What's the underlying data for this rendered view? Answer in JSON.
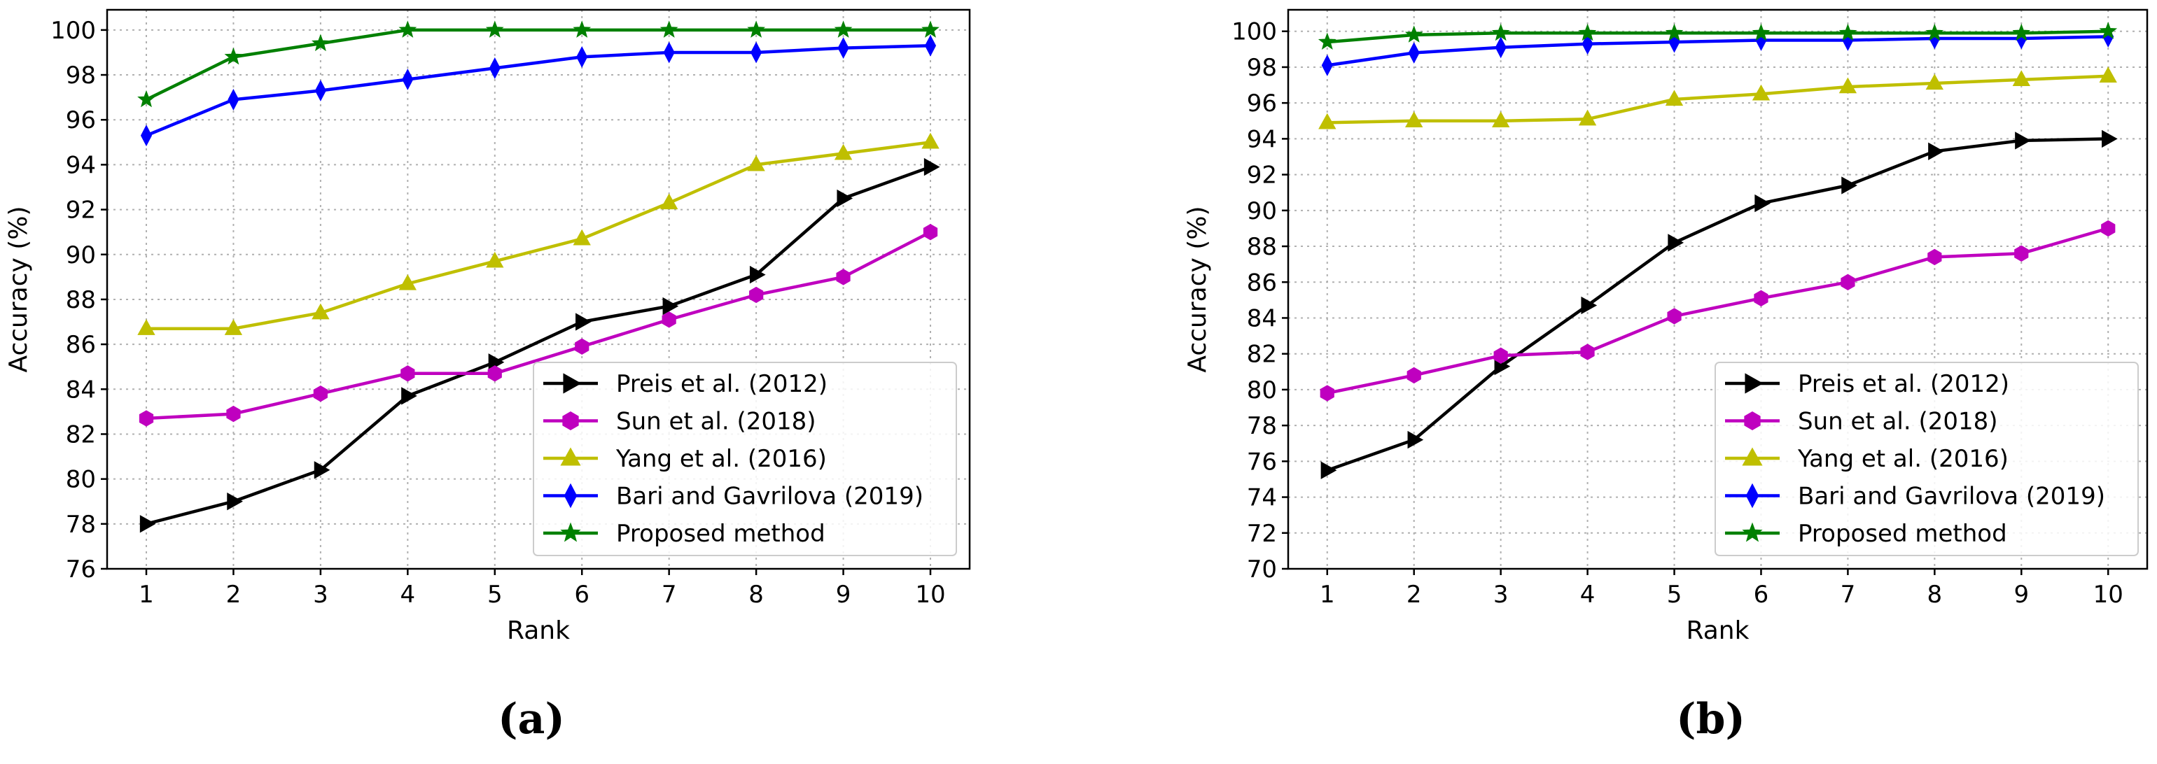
{
  "colors": {
    "preis": "#000000",
    "sun": "#bf00bf",
    "yang": "#bfbf00",
    "bari": "#0000ff",
    "proposed": "#008000"
  },
  "chart_data": [
    {
      "type": "line",
      "panel": "a",
      "panel_label": "(a)",
      "xlabel": "Rank",
      "ylabel": "Accuracy (%)",
      "xlim": [
        0.55,
        10.45
      ],
      "ylim": [
        76,
        100.9
      ],
      "x": [
        1,
        2,
        3,
        4,
        5,
        6,
        7,
        8,
        9,
        10
      ],
      "xticks": [
        "1",
        "2",
        "3",
        "4",
        "5",
        "6",
        "7",
        "8",
        "9",
        "10"
      ],
      "yticks": [
        76,
        78,
        80,
        82,
        84,
        86,
        88,
        90,
        92,
        94,
        96,
        98,
        100
      ],
      "grid": true,
      "legend_position": "lower-right",
      "series": [
        {
          "name": "Preis et al. (2012)",
          "color_key": "preis",
          "marker": "triangle-right",
          "values": [
            78.0,
            79.0,
            80.4,
            83.7,
            85.2,
            87.0,
            87.7,
            89.1,
            92.5,
            93.9
          ]
        },
        {
          "name": "Sun et al. (2018)",
          "color_key": "sun",
          "marker": "hexagon",
          "values": [
            82.7,
            82.9,
            83.8,
            84.7,
            84.7,
            85.9,
            87.1,
            88.2,
            89.0,
            91.0
          ]
        },
        {
          "name": "Yang et al. (2016)",
          "color_key": "yang",
          "marker": "triangle-up",
          "values": [
            86.7,
            86.7,
            87.4,
            88.7,
            89.7,
            90.7,
            92.3,
            94.0,
            94.5,
            95.0
          ]
        },
        {
          "name": "Bari and Gavrilova (2019)",
          "color_key": "bari",
          "marker": "thin-diamond",
          "values": [
            95.3,
            96.9,
            97.3,
            97.8,
            98.3,
            98.8,
            99.0,
            99.0,
            99.2,
            99.3
          ]
        },
        {
          "name": "Proposed method",
          "color_key": "proposed",
          "marker": "star",
          "values": [
            96.9,
            98.8,
            99.4,
            100.0,
            100.0,
            100.0,
            100.0,
            100.0,
            100.0,
            100.0
          ]
        }
      ]
    },
    {
      "type": "line",
      "panel": "b",
      "panel_label": "(b)",
      "xlabel": "Rank",
      "ylabel": "Accuracy (%)",
      "xlim": [
        0.55,
        10.45
      ],
      "ylim": [
        70,
        101.2
      ],
      "x": [
        1,
        2,
        3,
        4,
        5,
        6,
        7,
        8,
        9,
        10
      ],
      "xticks": [
        "1",
        "2",
        "3",
        "4",
        "5",
        "6",
        "7",
        "8",
        "9",
        "10"
      ],
      "yticks": [
        70,
        72,
        74,
        76,
        78,
        80,
        82,
        84,
        86,
        88,
        90,
        92,
        94,
        96,
        98,
        100
      ],
      "grid": true,
      "legend_position": "lower-right",
      "series": [
        {
          "name": "Preis et al. (2012)",
          "color_key": "preis",
          "marker": "triangle-right",
          "values": [
            75.5,
            77.2,
            81.3,
            84.7,
            88.2,
            90.4,
            91.4,
            93.3,
            93.9,
            94.0
          ]
        },
        {
          "name": "Sun et al. (2018)",
          "color_key": "sun",
          "marker": "hexagon",
          "values": [
            79.8,
            80.8,
            81.9,
            82.1,
            84.1,
            85.1,
            86.0,
            87.4,
            87.6,
            89.0
          ]
        },
        {
          "name": "Yang et al. (2016)",
          "color_key": "yang",
          "marker": "triangle-up",
          "values": [
            94.9,
            95.0,
            95.0,
            95.1,
            96.2,
            96.5,
            96.9,
            97.1,
            97.3,
            97.5
          ]
        },
        {
          "name": "Bari and Gavrilova (2019)",
          "color_key": "bari",
          "marker": "thin-diamond",
          "values": [
            98.1,
            98.8,
            99.1,
            99.3,
            99.4,
            99.5,
            99.5,
            99.6,
            99.6,
            99.7
          ]
        },
        {
          "name": "Proposed method",
          "color_key": "proposed",
          "marker": "star",
          "values": [
            99.4,
            99.8,
            99.9,
            99.9,
            99.9,
            99.9,
            99.9,
            99.9,
            99.9,
            100.0
          ]
        }
      ]
    }
  ]
}
